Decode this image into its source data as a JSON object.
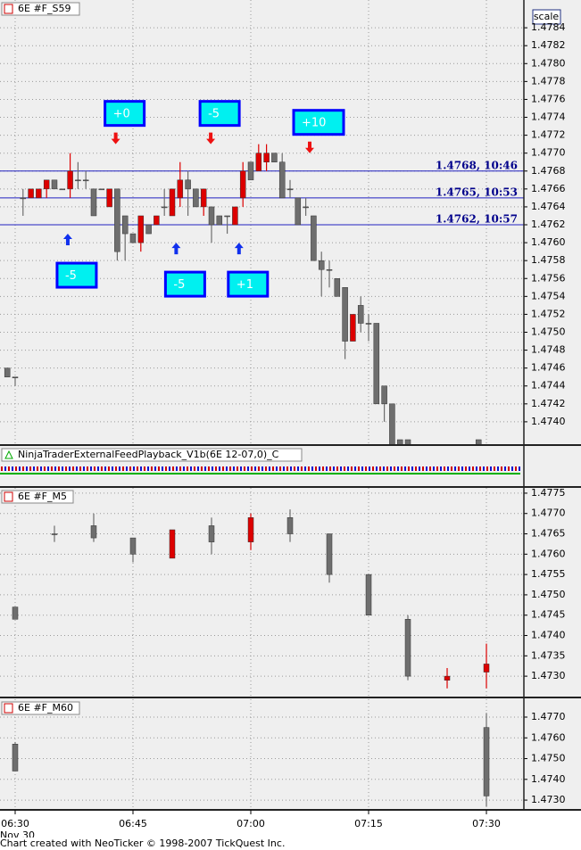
{
  "chart_data": [
    {
      "type": "candlestick",
      "title": "6E #F_S59",
      "up_color": "#dd0000",
      "down_color": "#6e6e6e",
      "grid": true,
      "xlim": [
        388.07,
        454.77
      ],
      "ylim": [
        1.47375,
        1.47871
      ],
      "yticks": [
        {
          "value": 1.474,
          "label": "1.4740"
        },
        1.4742,
        1.4744,
        1.4746,
        1.4748,
        {
          "value": 1.475,
          "label": "1.4750"
        },
        1.4752,
        1.4754,
        1.4756,
        1.4758,
        {
          "value": 1.476,
          "label": "1.4760"
        },
        1.4762,
        1.4764,
        1.4766,
        1.4768,
        {
          "value": 1.477,
          "label": "1.4770"
        },
        1.4772,
        1.4774,
        1.4776,
        1.4778,
        {
          "value": 1.478,
          "label": "1.4780"
        },
        1.4782,
        1.4784
      ],
      "x": [
        389,
        390,
        391,
        392,
        393,
        394,
        395,
        396,
        397,
        398,
        399,
        400,
        401,
        402,
        403,
        404,
        405,
        406,
        407,
        408,
        409,
        410,
        411,
        412,
        413,
        414,
        415,
        416,
        417,
        418,
        419,
        420,
        421,
        422,
        423,
        424,
        425,
        426,
        427,
        428,
        429,
        430,
        431,
        432,
        433,
        434,
        435,
        436,
        437,
        438,
        439,
        440,
        449
      ],
      "open": [
        1.4746,
        1.4745,
        1.4765,
        1.4765,
        1.4765,
        1.4766,
        1.4767,
        1.4766,
        1.4766,
        1.4767,
        1.4767,
        1.4766,
        1.4766,
        1.4764,
        1.4766,
        1.4763,
        1.4761,
        1.476,
        1.4762,
        1.4762,
        1.4764,
        1.4763,
        1.4765,
        1.4767,
        1.4766,
        1.4764,
        1.4764,
        1.4763,
        1.4763,
        1.4762,
        1.4765,
        1.4769,
        1.4768,
        1.4769,
        1.477,
        1.4769,
        1.4766,
        1.4765,
        1.4764,
        1.4763,
        1.4758,
        1.4757,
        1.4756,
        1.4755,
        1.4749,
        1.4753,
        1.4751,
        1.4751,
        1.4744,
        1.4742,
        1.4738,
        1.4738,
        1.4738
      ],
      "high": [
        1.4746,
        1.4745,
        1.4766,
        1.4766,
        1.4766,
        1.4767,
        1.4767,
        1.4766,
        1.477,
        1.4769,
        1.4768,
        1.4766,
        1.4766,
        1.4766,
        1.4766,
        1.4763,
        1.4761,
        1.4763,
        1.4762,
        1.4763,
        1.4766,
        1.4766,
        1.4769,
        1.4768,
        1.4766,
        1.4766,
        1.4764,
        1.4763,
        1.4763,
        1.4764,
        1.4769,
        1.4769,
        1.4771,
        1.4771,
        1.477,
        1.477,
        1.4767,
        1.4765,
        1.4765,
        1.4763,
        1.4759,
        1.4758,
        1.4756,
        1.4755,
        1.4752,
        1.4754,
        1.4752,
        1.4751,
        1.4744,
        1.4742,
        1.4738,
        1.4738,
        1.4738
      ],
      "low": [
        1.4745,
        1.4744,
        1.4763,
        1.4765,
        1.4765,
        1.4765,
        1.4766,
        1.4766,
        1.4765,
        1.4766,
        1.4766,
        1.4763,
        1.4766,
        1.4764,
        1.4758,
        1.4758,
        1.476,
        1.4759,
        1.4761,
        1.4762,
        1.4763,
        1.4763,
        1.4764,
        1.4763,
        1.4764,
        1.4763,
        1.476,
        1.4762,
        1.4761,
        1.4762,
        1.4764,
        1.4767,
        1.4768,
        1.4768,
        1.4769,
        1.4765,
        1.4765,
        1.4762,
        1.4763,
        1.4758,
        1.4754,
        1.4755,
        1.4754,
        1.4747,
        1.4749,
        1.475,
        1.4749,
        1.4742,
        1.474,
        1.4736,
        1.4736,
        1.4736,
        1.4736
      ],
      "close": [
        1.4745,
        1.4745,
        1.4765,
        1.4766,
        1.4766,
        1.4767,
        1.4766,
        1.4766,
        1.4768,
        1.4767,
        1.4767,
        1.4763,
        1.4766,
        1.4766,
        1.4759,
        1.4761,
        1.476,
        1.4763,
        1.4761,
        1.4763,
        1.4764,
        1.4766,
        1.4767,
        1.4766,
        1.4764,
        1.4766,
        1.4762,
        1.4762,
        1.4763,
        1.4764,
        1.4768,
        1.4767,
        1.477,
        1.477,
        1.4769,
        1.4765,
        1.4766,
        1.4762,
        1.4764,
        1.4758,
        1.4757,
        1.4757,
        1.4754,
        1.4749,
        1.4752,
        1.4751,
        1.4751,
        1.4742,
        1.4742,
        1.4736,
        1.4736,
        1.4736,
        1.4737
      ],
      "hlines": [
        {
          "value": 1.4768,
          "label": "1.4768, 10:46"
        },
        {
          "value": 1.4765,
          "label": "1.4765, 10:53"
        },
        {
          "value": 1.4762,
          "label": "1.4762, 10:57"
        }
      ],
      "hline_color": "#2020c0",
      "annotations": [
        {
          "text": "+0",
          "x": 402.8,
          "y": 1.4771,
          "arrow": "down",
          "color": "#ee1111"
        },
        {
          "text": "-5",
          "x": 414.9,
          "y": 1.4771,
          "arrow": "down",
          "color": "#ee1111"
        },
        {
          "text": "+10",
          "x": 427.5,
          "y": 1.477,
          "arrow": "down",
          "color": "#ee1111"
        },
        {
          "text": "-5",
          "x": 396.7,
          "y": 1.4761,
          "arrow": "up",
          "color": "#1030ee"
        },
        {
          "text": "-5",
          "x": 410.5,
          "y": 1.476,
          "arrow": "up",
          "color": "#1030ee"
        },
        {
          "text": "+1",
          "x": 418.5,
          "y": 1.476,
          "arrow": "up",
          "color": "#1030ee"
        }
      ]
    },
    {
      "type": "candlestick",
      "title": "6E #F_M5",
      "up_color": "#dd0000",
      "down_color": "#6e6e6e",
      "grid": true,
      "xlim": [
        388.07,
        454.77
      ],
      "ylim": [
        1.47252,
        1.47763
      ],
      "yticks": [
        {
          "value": 1.473,
          "label": "1.4730"
        },
        1.4735,
        {
          "value": 1.474,
          "label": "1.4740"
        },
        1.4745,
        {
          "value": 1.475,
          "label": "1.4750"
        },
        1.4755,
        {
          "value": 1.476,
          "label": "1.4760"
        },
        1.4765,
        {
          "value": 1.477,
          "label": "1.4770"
        },
        1.4775
      ],
      "x": [
        390,
        395,
        400,
        405,
        410,
        415,
        420,
        425,
        430,
        435,
        440,
        445,
        450
      ],
      "open": [
        1.4747,
        1.4765,
        1.4767,
        1.4764,
        1.4759,
        1.4767,
        1.4763,
        1.4769,
        1.4765,
        1.4755,
        1.4744,
        1.4729,
        1.4731
      ],
      "high": [
        1.4747,
        1.4767,
        1.477,
        1.4764,
        1.4766,
        1.4769,
        1.477,
        1.4771,
        1.4765,
        1.4755,
        1.4745,
        1.4732,
        1.4738
      ],
      "low": [
        1.4744,
        1.4763,
        1.4763,
        1.4758,
        1.4759,
        1.476,
        1.4761,
        1.4763,
        1.4753,
        1.4745,
        1.4729,
        1.4727,
        1.4727
      ],
      "close": [
        1.4744,
        1.4765,
        1.4764,
        1.476,
        1.4766,
        1.4763,
        1.4769,
        1.4765,
        1.4755,
        1.4745,
        1.473,
        1.473,
        1.4733
      ]
    },
    {
      "type": "candlestick",
      "title": "6E #F_M60",
      "up_color": "#dd0000",
      "down_color": "#6e6e6e",
      "grid": true,
      "xlim": [
        388.07,
        454.77
      ],
      "ylim": [
        1.47253,
        1.47786
      ],
      "yticks": [
        {
          "value": 1.473,
          "label": "1.4730"
        },
        {
          "value": 1.474,
          "label": "1.4740"
        },
        {
          "value": 1.475,
          "label": "1.4750"
        },
        {
          "value": 1.476,
          "label": "1.4760"
        },
        {
          "value": 1.477,
          "label": "1.4770"
        }
      ],
      "xticks": [
        {
          "value": 390,
          "label": "06:30"
        },
        {
          "value": 405,
          "label": "06:45"
        },
        {
          "value": 420,
          "label": "07:00"
        },
        {
          "value": 435,
          "label": "07:15"
        },
        {
          "value": 450,
          "label": "07:30"
        }
      ],
      "x": [
        390,
        450
      ],
      "open": [
        1.4757,
        1.4765
      ],
      "high": [
        1.4758,
        1.4772
      ],
      "low": [
        1.4744,
        1.4727
      ],
      "close": [
        1.4744,
        1.4732
      ]
    }
  ],
  "indicator_panel": {
    "title": "NinjaTraderExternalFeedPlayback_V1b(6E 12-07,0)_C"
  },
  "scale_button": "scale",
  "date_label": "Nov 30",
  "footer": "Chart created with NeoTicker © 1998-2007 TickQuest Inc."
}
